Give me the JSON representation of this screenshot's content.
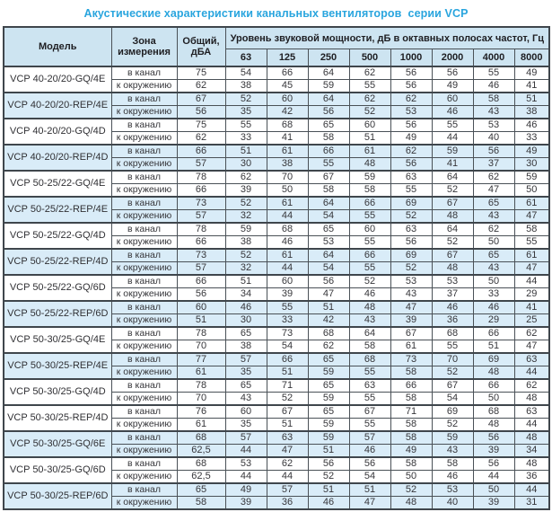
{
  "title": "Акустические характеристики канальных вентиляторов  серии VCP",
  "colors": {
    "title_text": "#29a5de",
    "header_bg": "#cde4f1",
    "shaded_row_bg": "#d9ecf8",
    "border_dark": "#3f464c",
    "border_inner": "#9aa2a8",
    "text": "#36363a"
  },
  "table": {
    "headers": {
      "model": "Модель",
      "zone": "Зона измерения",
      "total": "Общий, дБА",
      "spectrum": "Уровень звуковой мощности, дБ в октавных полосах частот, Гц"
    },
    "frequencies": [
      "63",
      "125",
      "250",
      "500",
      "1000",
      "2000",
      "4000",
      "8000"
    ],
    "zone_labels": [
      "в канал",
      "к окружению"
    ],
    "rows": [
      {
        "model": "VCP 40-20/20-GQ/4E",
        "shaded": false,
        "duct": [
          "75",
          "54",
          "66",
          "64",
          "62",
          "56",
          "56",
          "55",
          "49"
        ],
        "ambient": [
          "62",
          "38",
          "45",
          "59",
          "55",
          "56",
          "49",
          "46",
          "41"
        ]
      },
      {
        "model": "VCP 40-20/20-REP/4E",
        "shaded": true,
        "duct": [
          "67",
          "52",
          "60",
          "64",
          "62",
          "62",
          "60",
          "58",
          "51"
        ],
        "ambient": [
          "56",
          "35",
          "42",
          "56",
          "52",
          "53",
          "46",
          "43",
          "38"
        ]
      },
      {
        "model": "VCP 40-20/20-GQ/4D",
        "shaded": false,
        "duct": [
          "75",
          "55",
          "68",
          "65",
          "60",
          "56",
          "55",
          "53",
          "46"
        ],
        "ambient": [
          "62",
          "33",
          "41",
          "58",
          "51",
          "49",
          "44",
          "40",
          "33"
        ]
      },
      {
        "model": "VCP 40-20/20-REP/4D",
        "shaded": true,
        "duct": [
          "66",
          "51",
          "61",
          "66",
          "61",
          "62",
          "59",
          "56",
          "49"
        ],
        "ambient": [
          "57",
          "30",
          "38",
          "55",
          "48",
          "56",
          "41",
          "37",
          "30"
        ]
      },
      {
        "model": "VCP 50-25/22-GQ/4E",
        "shaded": false,
        "duct": [
          "78",
          "62",
          "70",
          "67",
          "59",
          "63",
          "64",
          "62",
          "59"
        ],
        "ambient": [
          "66",
          "39",
          "50",
          "58",
          "58",
          "55",
          "52",
          "47",
          "50"
        ]
      },
      {
        "model": "VCP 50-25/22-REP/4E",
        "shaded": true,
        "duct": [
          "73",
          "52",
          "61",
          "64",
          "66",
          "69",
          "67",
          "65",
          "61"
        ],
        "ambient": [
          "57",
          "32",
          "44",
          "54",
          "55",
          "52",
          "48",
          "43",
          "47"
        ]
      },
      {
        "model": "VCP 50-25/22-GQ/4D",
        "shaded": false,
        "duct": [
          "78",
          "59",
          "68",
          "65",
          "60",
          "63",
          "64",
          "62",
          "58"
        ],
        "ambient": [
          "66",
          "38",
          "46",
          "53",
          "55",
          "56",
          "52",
          "50",
          "55"
        ]
      },
      {
        "model": "VCP 50-25/22-REP/4D",
        "shaded": true,
        "duct": [
          "73",
          "52",
          "61",
          "64",
          "66",
          "69",
          "67",
          "65",
          "61"
        ],
        "ambient": [
          "57",
          "32",
          "44",
          "54",
          "55",
          "52",
          "48",
          "43",
          "47"
        ]
      },
      {
        "model": "VCP 50-25/22-GQ/6D",
        "shaded": false,
        "duct": [
          "66",
          "51",
          "60",
          "56",
          "52",
          "53",
          "53",
          "50",
          "44"
        ],
        "ambient": [
          "56",
          "34",
          "39",
          "47",
          "46",
          "43",
          "37",
          "33",
          "29"
        ]
      },
      {
        "model": "VCP 50-25/22-REP/6D",
        "shaded": true,
        "duct": [
          "60",
          "46",
          "55",
          "51",
          "48",
          "47",
          "46",
          "46",
          "41"
        ],
        "ambient": [
          "51",
          "30",
          "33",
          "42",
          "43",
          "39",
          "36",
          "29",
          "25"
        ]
      },
      {
        "model": "VCP 50-30/25-GQ/4E",
        "shaded": false,
        "duct": [
          "78",
          "65",
          "73",
          "68",
          "64",
          "67",
          "68",
          "66",
          "62"
        ],
        "ambient": [
          "70",
          "38",
          "54",
          "62",
          "58",
          "61",
          "55",
          "51",
          "47"
        ]
      },
      {
        "model": "VCP 50-30/25-REP/4E",
        "shaded": true,
        "duct": [
          "77",
          "57",
          "66",
          "65",
          "68",
          "73",
          "70",
          "69",
          "63"
        ],
        "ambient": [
          "61",
          "35",
          "51",
          "59",
          "55",
          "58",
          "52",
          "48",
          "44"
        ]
      },
      {
        "model": "VCP 50-30/25-GQ/4D",
        "shaded": false,
        "duct": [
          "78",
          "65",
          "71",
          "65",
          "63",
          "66",
          "67",
          "66",
          "62"
        ],
        "ambient": [
          "70",
          "43",
          "52",
          "59",
          "55",
          "58",
          "54",
          "50",
          "48"
        ]
      },
      {
        "model": "VCP 50-30/25-REP/4D",
        "shaded": false,
        "duct": [
          "76",
          "60",
          "67",
          "65",
          "67",
          "71",
          "69",
          "68",
          "63"
        ],
        "ambient": [
          "61",
          "35",
          "51",
          "59",
          "55",
          "58",
          "52",
          "48",
          "44"
        ]
      },
      {
        "model": "VCP 50-30/25-GQ/6E",
        "shaded": true,
        "duct": [
          "68",
          "57",
          "63",
          "59",
          "57",
          "58",
          "59",
          "56",
          "48"
        ],
        "ambient": [
          "62,5",
          "44",
          "47",
          "51",
          "46",
          "49",
          "43",
          "39",
          "34"
        ]
      },
      {
        "model": "VCP 50-30/25-GQ/6D",
        "shaded": false,
        "duct": [
          "68",
          "53",
          "62",
          "56",
          "56",
          "58",
          "58",
          "56",
          "48"
        ],
        "ambient": [
          "62,5",
          "44",
          "44",
          "52",
          "54",
          "50",
          "46",
          "44",
          "36"
        ]
      },
      {
        "model": "VCP 50-30/25-REP/6D",
        "shaded": true,
        "duct": [
          "65",
          "49",
          "57",
          "51",
          "51",
          "52",
          "53",
          "50",
          "44"
        ],
        "ambient": [
          "58",
          "39",
          "36",
          "46",
          "47",
          "48",
          "40",
          "39",
          "31"
        ]
      }
    ]
  }
}
